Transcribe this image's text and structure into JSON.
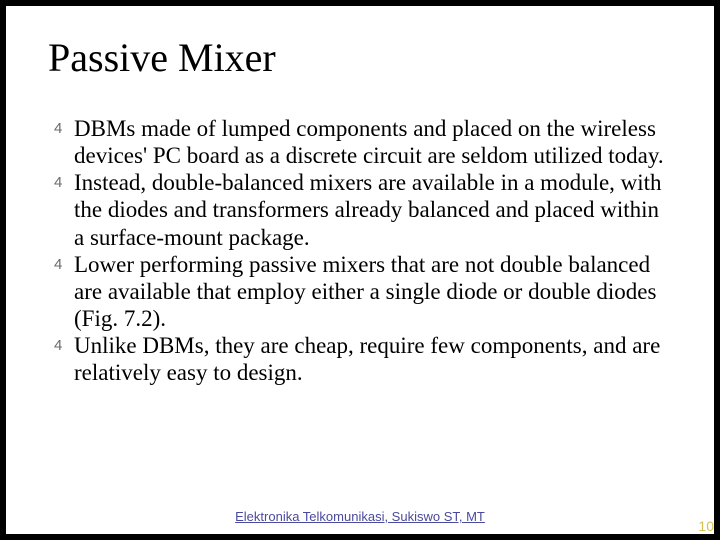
{
  "slide": {
    "title": "Passive Mixer",
    "bullet_glyph": "4",
    "bullets": [
      "DBMs made of lumped components and placed on the wireless devices' PC board as a discrete circuit are seldom utilized today.",
      "Instead, double-balanced mixers are available in a module, with the diodes and transformers already balanced and placed within a surface-mount package.",
      "Lower performing passive mixers that are not double balanced are available that employ either a single diode or double diodes (Fig. 7.2).",
      "Unlike DBMs, they are cheap, require few components, and are relatively easy to design."
    ],
    "footer": "Elektronika Telkomunikasi, Sukiswo ST, MT",
    "page_number": "10"
  },
  "colors": {
    "background": "#000000",
    "slide_bg": "#ffffff",
    "title_color": "#000000",
    "body_color": "#000000",
    "footer_color": "#4a4a9e",
    "pagenum_color": "#d6c04d",
    "bullet_color": "#6b6b6b"
  },
  "typography": {
    "title_fontsize": 40,
    "body_fontsize": 23,
    "footer_fontsize": 13,
    "pagenum_fontsize": 14,
    "font_family": "Times New Roman"
  }
}
